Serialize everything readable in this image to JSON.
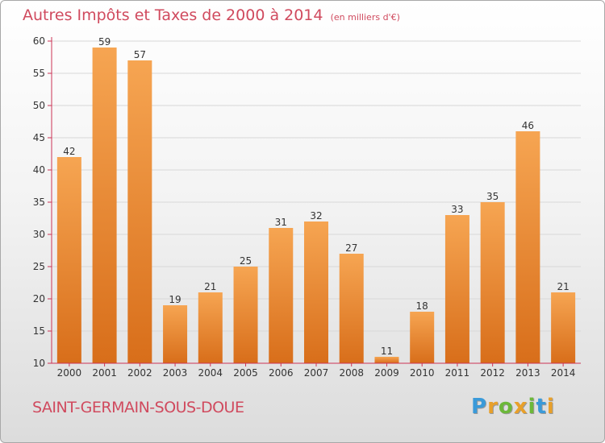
{
  "title": "Autres Impôts et Taxes de 2000 à 2014",
  "subtitle": "(en milliers d'€)",
  "commune": "SAINT-GERMAIN-SOUS-DOUE",
  "logo_text": "Proxiti",
  "colors": {
    "bar_top": "#f6a552",
    "bar_bottom": "#d86e1a",
    "title": "#d04a5e",
    "axis": "#cc3355",
    "grid": "#d8d8d8",
    "logo": [
      "#3a9ad9",
      "#e8a02a",
      "#6cb83a",
      "#e8a02a",
      "#6cb83a",
      "#3a9ad9",
      "#e8a02a"
    ]
  },
  "chart_data": {
    "type": "bar",
    "title": "Autres Impôts et Taxes de 2000 à 2014",
    "categories": [
      "2000",
      "2001",
      "2002",
      "2003",
      "2004",
      "2005",
      "2006",
      "2007",
      "2008",
      "2009",
      "2010",
      "2011",
      "2012",
      "2013",
      "2014"
    ],
    "values": [
      42,
      59,
      57,
      19,
      21,
      25,
      31,
      32,
      27,
      11,
      18,
      33,
      35,
      46,
      21
    ],
    "ylim": [
      10,
      60
    ],
    "yticks": [
      10,
      15,
      20,
      25,
      30,
      35,
      40,
      45,
      50,
      55,
      60
    ],
    "grid": true,
    "data_labels": true
  }
}
